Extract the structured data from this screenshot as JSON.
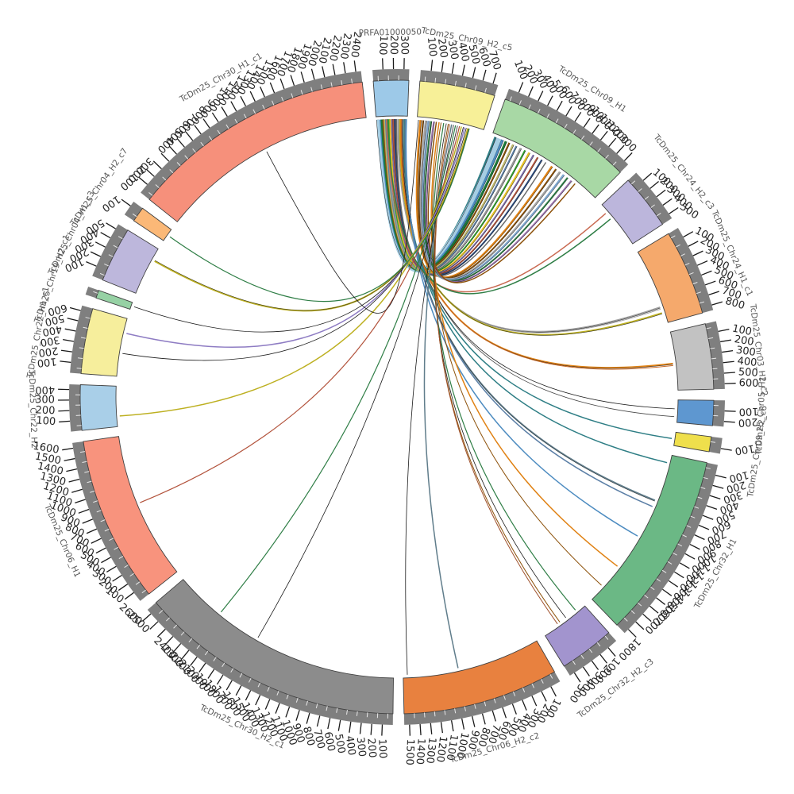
{
  "chart_data": {
    "type": "chord",
    "description": "Circular synteny (circos) plot of assembly contigs with 100 kb-interval tick scales and chord links radiating from the top reference contigs",
    "layout": {
      "start_deg": -4.3,
      "gap_deg": 2,
      "grid": false,
      "legend": "none",
      "band_color": "#7f7f7f",
      "tick_color": "#1a1a1a",
      "tick_label_color": "#262626",
      "name_label_color": "#595959",
      "tick_interval": 100,
      "minor_tick_interval": 50
    },
    "segments": [
      {
        "name": "PRFA01000050",
        "color": "#9DC9E8",
        "length": 350,
        "tick_max": 300
      },
      {
        "name": "TcDm25_Chr09_H2_c5",
        "color": "#F7F098",
        "length": 750,
        "tick_max": 700
      },
      {
        "name": "TcDm25_Chr09_H1",
        "color": "#A8D8A5",
        "length": 1350,
        "tick_max": 1300
      },
      {
        "name": "TcDm25_Chr24_H2_c3",
        "color": "#BCB6DC",
        "length": 550,
        "tick_max": 500
      },
      {
        "name": "TcDm25_Chr24_H1_c1",
        "color": "#F5A96C",
        "length": 850,
        "tick_max": 800
      },
      {
        "name": "TcDm25_Chr03_H2_c2",
        "color": "#C2C2C2",
        "length": 650,
        "tick_max": 600
      },
      {
        "name": "TcDm25_Chr05_H1",
        "color": "#5E97D0",
        "length": 250,
        "tick_max": 200
      },
      {
        "name": "TcDm25_Chr09_H2_c6",
        "color": "#EFDF4C",
        "length": 150,
        "tick_max": 100
      },
      {
        "name": "TcDm25_Chr32_H1",
        "color": "#6BB885",
        "length": 1850,
        "tick_max": 1800
      },
      {
        "name": "TcDm25_Chr32_H2_c3",
        "color": "#A294CE",
        "length": 550,
        "tick_max": 500
      },
      {
        "name": "TcDm25_Chr06_H2_c2",
        "color": "#E8813F",
        "length": 1550,
        "tick_max": 1500
      },
      {
        "name": "TcDm25_Chr30_H2_c1",
        "color": "#8C8C8C",
        "length": 2650,
        "tick_max": 2600
      },
      {
        "name": "TcDm25_Chr06_H1",
        "color": "#F8937D",
        "length": 1650,
        "tick_max": 1600
      },
      {
        "name": "TcDm25_Chr22_H2",
        "color": "#A9CFE8",
        "length": 450,
        "tick_max": 400
      },
      {
        "name": "TcDm25_Chr22_H1_c1",
        "color": "#F6EE9C",
        "length": 650,
        "tick_max": 600
      },
      {
        "name": "TcDm25_Chr19_H2_c1",
        "color": "#96D1A4",
        "length": 80,
        "tick_max": 0
      },
      {
        "name": "TcDm25_Chr04_H1_c3",
        "color": "#BDB7DC",
        "length": 550,
        "tick_max": 500
      },
      {
        "name": "TcDm25_Chr04_H2_c7",
        "color": "#FBB877",
        "length": 150,
        "tick_max": 100
      },
      {
        "name": "TcDm25_Chr30_H1_c1",
        "color": "#F6907B",
        "length": 2450,
        "tick_max": 2400
      }
    ],
    "links": [
      [
        0,
        0.05,
        2,
        0.03,
        "#2E7E85",
        2.5
      ],
      [
        0,
        0.1,
        2,
        0.062,
        "#A6CEE3",
        7
      ],
      [
        0,
        0.145,
        2,
        0.095,
        "#4C8BC0",
        3
      ],
      [
        0,
        0.185,
        2,
        0.125,
        "#1B7837",
        3
      ],
      [
        0,
        0.225,
        2,
        0.155,
        "#8C510A",
        2
      ],
      [
        0,
        0.27,
        2,
        0.19,
        "#BDB76B",
        2.5
      ],
      [
        0,
        0.31,
        2,
        0.22,
        "#5B7FA6",
        2
      ],
      [
        0,
        0.35,
        2,
        0.26,
        "#999999",
        2.5
      ],
      [
        0,
        0.4,
        2,
        0.3,
        "#33A02C",
        2
      ],
      [
        0,
        0.45,
        2,
        0.34,
        "#E6C229",
        2.5
      ],
      [
        0,
        0.5,
        2,
        0.38,
        "#7B6BAA",
        2
      ],
      [
        0,
        0.55,
        2,
        0.42,
        "#B2523B",
        2
      ],
      [
        0,
        0.6,
        2,
        0.46,
        "#2C4B7C",
        2
      ],
      [
        0,
        0.65,
        2,
        0.5,
        "#6B6B6B",
        1.5
      ],
      [
        0,
        0.7,
        4,
        0.78,
        "#9E9E9E",
        2
      ],
      [
        0,
        0.73,
        4,
        0.805,
        "#9E9E9E",
        1
      ],
      [
        0,
        0.76,
        4,
        0.86,
        "#BDB021",
        2
      ],
      [
        0,
        0.79,
        5,
        0.54,
        "#E08214",
        2
      ],
      [
        0,
        0.815,
        5,
        0.575,
        "#C96A2A",
        1
      ],
      [
        0,
        0.84,
        6,
        0.4,
        "#1A1A1A",
        0.8
      ],
      [
        0,
        0.87,
        6,
        0.75,
        "#444444",
        0.8
      ],
      [
        0,
        0.9,
        7,
        0.5,
        "#2E7E85",
        1.5
      ],
      [
        0,
        0.92,
        8,
        0.05,
        "#2E7E85",
        1.5
      ],
      [
        0,
        0.94,
        8,
        0.29,
        "#607D8B",
        2
      ],
      [
        0,
        0.955,
        8,
        0.33,
        "#5B7FA6",
        1.5
      ],
      [
        0,
        0.97,
        8,
        0.53,
        "#4C8BC0",
        1.5
      ],
      [
        0,
        0.33,
        3,
        0.18,
        "#C96A52",
        1.5
      ],
      [
        0,
        0.37,
        3,
        0.33,
        "#2F7E46",
        1.5
      ],
      [
        1,
        0.05,
        2,
        0.56,
        "#E08214",
        2.5
      ],
      [
        1,
        0.09,
        2,
        0.6,
        "#8C510A",
        2
      ],
      [
        1,
        0.13,
        2,
        0.64,
        "#A6A6A6",
        2.5
      ],
      [
        1,
        0.17,
        2,
        0.68,
        "#7EA6CE",
        2.5
      ],
      [
        1,
        0.21,
        2,
        0.72,
        "#2F7E46",
        2
      ],
      [
        1,
        0.25,
        2,
        0.76,
        "#9970AB",
        2
      ],
      [
        1,
        0.29,
        2,
        0.8,
        "#8C510A",
        1.5
      ],
      [
        1,
        0.33,
        8,
        0.75,
        "#E08214",
        1.5
      ],
      [
        1,
        0.36,
        8,
        0.9,
        "#8C510A",
        1
      ],
      [
        1,
        0.4,
        9,
        0.2,
        "#2F7E46",
        1.2
      ],
      [
        1,
        0.44,
        9,
        0.45,
        "#1A1A1A",
        0.8
      ],
      [
        1,
        0.47,
        9,
        0.6,
        "#8C510A",
        1
      ],
      [
        1,
        0.49,
        9,
        0.66,
        "#A0522D",
        1
      ],
      [
        1,
        0.52,
        10,
        0.6,
        "#607D8B",
        1.5
      ],
      [
        1,
        0.55,
        10,
        0.97,
        "#1A1A1A",
        0.8
      ],
      [
        1,
        0.58,
        11,
        0.79,
        "#2F7E46",
        1.2
      ],
      [
        1,
        0.61,
        11,
        0.6,
        "#1A1A1A",
        0.8
      ],
      [
        1,
        0.64,
        12,
        0.53,
        "#B2523B",
        1.2
      ],
      [
        1,
        0.67,
        13,
        0.26,
        "#BDB021",
        1.5
      ],
      [
        1,
        0.7,
        14,
        0.4,
        "#1A1A1A",
        0.8
      ],
      [
        1,
        0.72,
        14,
        0.75,
        "#8E7CC3",
        1.5
      ],
      [
        1,
        0.745,
        15,
        0.5,
        "#1A1A1A",
        0.8
      ],
      [
        1,
        0.77,
        16,
        0.75,
        "#BDB021",
        2
      ],
      [
        1,
        0.79,
        17,
        0.5,
        "#2F7E46",
        1.2
      ],
      [
        18,
        0.52,
        1,
        0.02,
        "#1A1A1A",
        0.8,
        1
      ]
    ]
  }
}
